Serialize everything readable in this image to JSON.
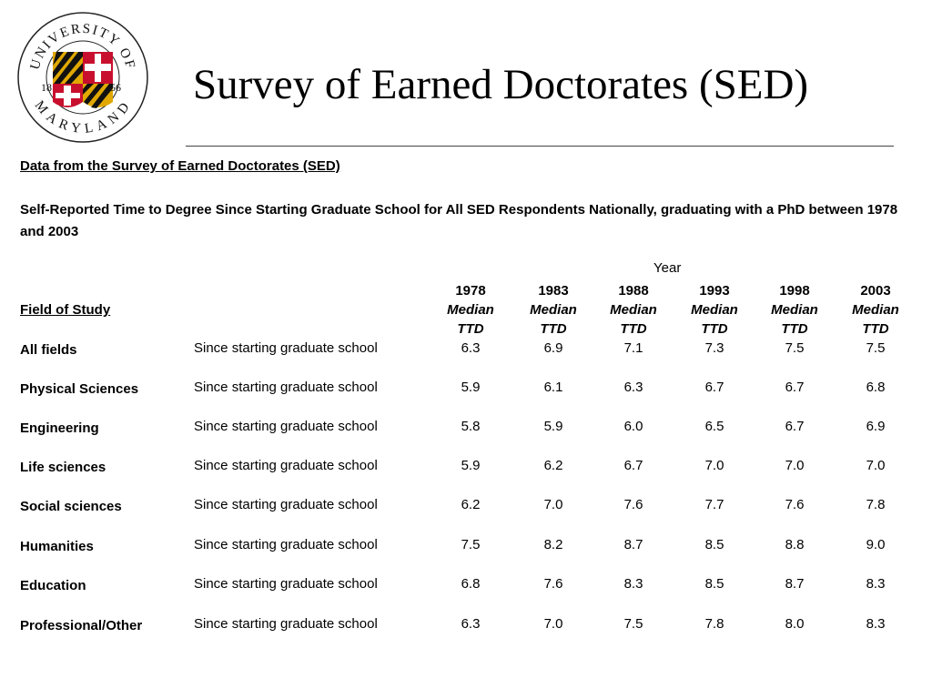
{
  "logo": {
    "name": "University of Maryland seal",
    "left_year": "18",
    "right_year": "56"
  },
  "title": "Survey of Earned Doctorates (SED)",
  "sub_heading": "Data from the Survey of Earned Doctorates (SED)",
  "description": "Self-Reported Time to Degree Since Starting Graduate School for All SED Respondents Nationally, graduating with a PhD between 1978 and 2003",
  "table": {
    "group_header": "Year",
    "field_header": "Field of Study",
    "columns": [
      {
        "year": "1978",
        "line1": "Median",
        "line2": "TTD"
      },
      {
        "year": "1983",
        "line1": "Median",
        "line2": "TTD"
      },
      {
        "year": "1988",
        "line1": "Median",
        "line2": "TTD"
      },
      {
        "year": "1993",
        "line1": "Median",
        "line2": "TTD"
      },
      {
        "year": "1998",
        "line1": "Median",
        "line2": "TTD"
      },
      {
        "year": "2003",
        "line1": "Median",
        "line2": "TTD"
      }
    ],
    "rows": [
      {
        "field": "All fields",
        "basis": "Since starting graduate school",
        "values": [
          "6.3",
          "6.9",
          "7.1",
          "7.3",
          "7.5",
          "7.5"
        ]
      },
      {
        "field": "Physical Sciences",
        "basis": "Since starting graduate school",
        "values": [
          "5.9",
          "6.1",
          "6.3",
          "6.7",
          "6.7",
          "6.8"
        ]
      },
      {
        "field": "Engineering",
        "basis": "Since starting graduate school",
        "values": [
          "5.8",
          "5.9",
          "6.0",
          "6.5",
          "6.7",
          "6.9"
        ]
      },
      {
        "field": "Life sciences",
        "basis": "Since starting graduate school",
        "values": [
          "5.9",
          "6.2",
          "6.7",
          "7.0",
          "7.0",
          "7.0"
        ]
      },
      {
        "field": "Social sciences",
        "basis": "Since starting graduate school",
        "values": [
          "6.2",
          "7.0",
          "7.6",
          "7.7",
          "7.6",
          "7.8"
        ]
      },
      {
        "field": "Humanities",
        "basis": "Since starting graduate school",
        "values": [
          "7.5",
          "8.2",
          "8.7",
          "8.5",
          "8.8",
          "9.0"
        ]
      },
      {
        "field": "Education",
        "basis": "Since starting graduate school",
        "values": [
          "6.8",
          "7.6",
          "8.3",
          "8.5",
          "8.7",
          "8.3"
        ]
      },
      {
        "field": "Professional/Other",
        "basis": "Since starting graduate school",
        "values": [
          "6.3",
          "7.0",
          "7.5",
          "7.8",
          "8.0",
          "8.3"
        ]
      }
    ]
  }
}
